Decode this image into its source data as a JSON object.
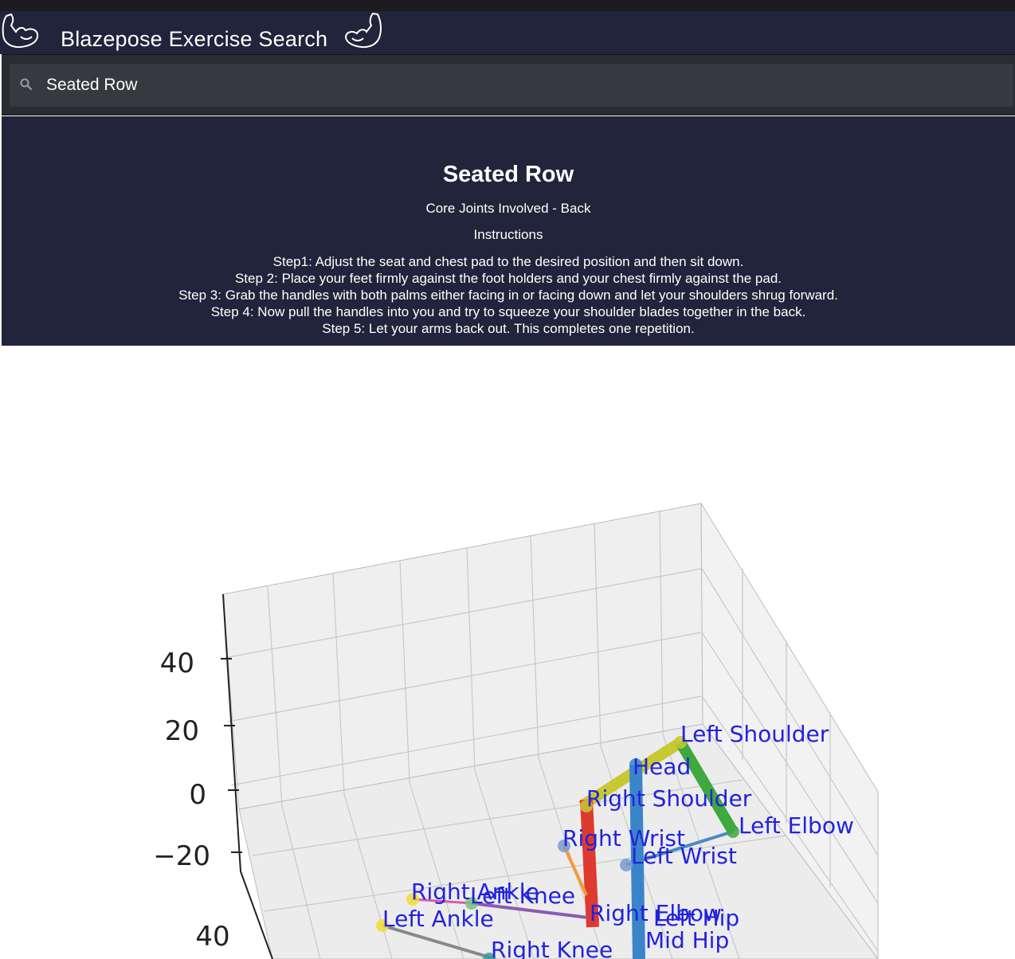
{
  "app": {
    "title": "Blazepose Exercise Search",
    "logo_left_icon": "flexed-arm-icon",
    "logo_right_icon": "flexed-arm-icon"
  },
  "search": {
    "icon": "search-icon",
    "value": "Seated Row"
  },
  "exercise": {
    "name": "Seated Row",
    "core_joints": "Core Joints Involved - Back",
    "instructions_heading": "Instructions",
    "steps": [
      "Step1: Adjust the seat and chest pad to the desired position and then sit down.",
      "Step 2: Place your feet firmly against the foot holders and your chest firmly against the pad.",
      "Step 3: Grab the handles with both palms either facing in or facing down and let your shoulders shrug forward.",
      "Step 4: Now pull the handles into you and try to squeeze your shoulder blades together in the back.",
      "Step 5: Let your arms back out. This completes one repetition."
    ]
  },
  "chart_data": {
    "type": "scatter",
    "projection": "3d",
    "grid": true,
    "z_ticks": [
      "40",
      "20",
      "0",
      "−20"
    ],
    "y_ticks": [
      "40"
    ],
    "joint_labels": [
      "Left Shoulder",
      "Head",
      "Right Shoulder",
      "Left Elbow",
      "Right Wrist",
      "Left Wrist",
      "Right Ankle",
      "Left Knee",
      "Left Ankle",
      "Right Elbow",
      "Left Hip",
      "Mid Hip",
      "Right Knee"
    ],
    "colors": {
      "label": "#2222dd",
      "pane": "#efefef",
      "grid": "#c8c8c8"
    }
  }
}
